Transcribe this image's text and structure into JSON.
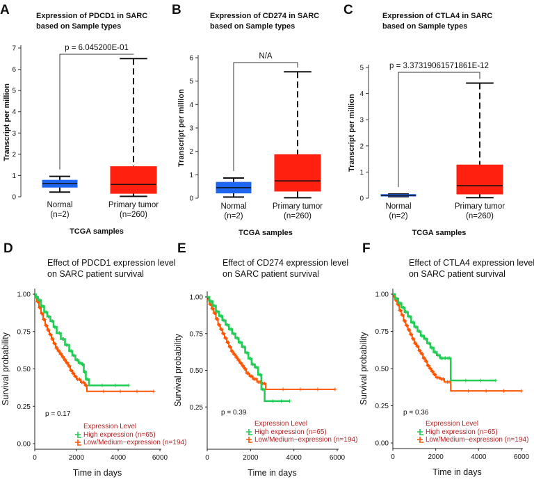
{
  "chart_data": [
    {
      "type": "box",
      "panel": "A",
      "title": "Expression of PDCD1 in SARC",
      "title2": "based on Sample types",
      "ylabel": "Transcript per million",
      "xlabel": "TCGA samples",
      "ylim": [
        0,
        7
      ],
      "yticks": [
        0,
        1,
        2,
        3,
        4,
        5,
        6,
        7
      ],
      "annotation": "p = 6.045200E-01",
      "groups": [
        {
          "name": "Normal",
          "n": "(n=2)",
          "color": "#1e66f0",
          "whisker_low": 0.22,
          "q1": 0.45,
          "median": 0.62,
          "q3": 0.78,
          "whisker_high": 0.96
        },
        {
          "name": "Primary tumor",
          "n": "(n=260)",
          "color": "#ff2010",
          "whisker_low": 0.02,
          "q1": 0.16,
          "median": 0.58,
          "q3": 1.42,
          "whisker_high": 6.5
        }
      ]
    },
    {
      "type": "box",
      "panel": "B",
      "title": "Expression of CD274 in SARC",
      "title2": "based on Sample types",
      "ylabel": "Transcript per million",
      "xlabel": "TCGA samples",
      "ylim": [
        0,
        6
      ],
      "yticks": [
        0,
        1,
        2,
        3,
        4,
        5,
        6
      ],
      "annotation": "N/A",
      "groups": [
        {
          "name": "Normal",
          "n": "(n=2)",
          "color": "#1e66f0",
          "whisker_low": 0.05,
          "q1": 0.22,
          "median": 0.45,
          "q3": 0.68,
          "whisker_high": 0.86
        },
        {
          "name": "Primary tumor",
          "n": "(n=260)",
          "color": "#ff2010",
          "whisker_low": 0.02,
          "q1": 0.3,
          "median": 0.74,
          "q3": 1.86,
          "whisker_high": 5.4
        }
      ]
    },
    {
      "type": "box",
      "panel": "C",
      "title": "Expression of CTLA4 in SARC",
      "title2": "based on Sample types",
      "ylabel": "Transcript per million",
      "xlabel": "TCGA samples",
      "ylim": [
        0,
        5
      ],
      "yticks": [
        0,
        1,
        2,
        3,
        4,
        5
      ],
      "annotation": "p = 3.37319061571861E-12",
      "groups": [
        {
          "name": "Normal",
          "n": "(n=2)",
          "color": "#1e66f0",
          "whisker_low": 0.06,
          "q1": 0.08,
          "median": 0.11,
          "q3": 0.14,
          "whisker_high": 0.16
        },
        {
          "name": "Primary tumor",
          "n": "(n=260)",
          "color": "#ff2010",
          "whisker_low": 0.02,
          "q1": 0.16,
          "median": 0.48,
          "q3": 1.27,
          "whisker_high": 4.4
        }
      ]
    },
    {
      "type": "line",
      "subtype": "kaplan-meier",
      "panel": "D",
      "title": "Effect of PDCD1 expression level",
      "title2": "on SARC patient survival",
      "ylabel": "Survival probability",
      "xlabel": "Time in days",
      "xlim": [
        0,
        6000
      ],
      "xticks": [
        0,
        2000,
        4000,
        6000
      ],
      "ylim": [
        0,
        1
      ],
      "yticks": [
        "0.00",
        "0.25",
        "0.50",
        "0.75",
        "1.00"
      ],
      "pvalue": "p = 0.17",
      "legend_title": "Expression Level",
      "series": [
        {
          "name": "High expression (n=65)",
          "color": "#22cc55",
          "x": [
            0,
            50,
            150,
            300,
            450,
            600,
            750,
            900,
            1050,
            1250,
            1450,
            1650,
            1800,
            1950,
            2100,
            2250,
            2350,
            2450,
            2600,
            4500
          ],
          "y": [
            1.0,
            0.98,
            0.96,
            0.92,
            0.88,
            0.85,
            0.82,
            0.78,
            0.74,
            0.7,
            0.66,
            0.62,
            0.59,
            0.56,
            0.54,
            0.53,
            0.48,
            0.43,
            0.39,
            0.39
          ]
        },
        {
          "name": "Low/Medium−expression (n=194)",
          "color": "#ff5500",
          "x": [
            0,
            50,
            100,
            200,
            300,
            400,
            500,
            600,
            700,
            800,
            900,
            1000,
            1100,
            1200,
            1300,
            1400,
            1500,
            1600,
            1700,
            1800,
            1900,
            2000,
            2200,
            2400,
            2500,
            5700
          ],
          "y": [
            1.0,
            0.98,
            0.95,
            0.91,
            0.87,
            0.83,
            0.79,
            0.76,
            0.73,
            0.7,
            0.67,
            0.64,
            0.62,
            0.6,
            0.58,
            0.56,
            0.54,
            0.52,
            0.49,
            0.47,
            0.45,
            0.43,
            0.41,
            0.39,
            0.35,
            0.35
          ]
        }
      ]
    },
    {
      "type": "line",
      "subtype": "kaplan-meier",
      "panel": "E",
      "title": "Effect of CD274 expression level",
      "title2": "on SARC patient survival",
      "ylabel": "Survival probability",
      "xlabel": "Time in days",
      "xlim": [
        0,
        6000
      ],
      "xticks": [
        0,
        2000,
        4000,
        6000
      ],
      "ylim": [
        0,
        1
      ],
      "yticks": [
        "0.25",
        "0.50",
        "0.75",
        "1.00"
      ],
      "pvalue": "p = 0.39",
      "legend_title": "Expression Level",
      "series": [
        {
          "name": "High expression (n=65)",
          "color": "#22cc55",
          "x": [
            0,
            100,
            250,
            400,
            550,
            700,
            850,
            1000,
            1150,
            1300,
            1450,
            1600,
            1750,
            1900,
            2050,
            2200,
            2350,
            2500,
            2650,
            3800
          ],
          "y": [
            1.0,
            0.97,
            0.94,
            0.9,
            0.87,
            0.84,
            0.81,
            0.78,
            0.75,
            0.72,
            0.69,
            0.66,
            0.62,
            0.58,
            0.54,
            0.52,
            0.47,
            0.37,
            0.29,
            0.29
          ]
        },
        {
          "name": "Low/Medium−expression (n=194)",
          "color": "#ff5500",
          "x": [
            0,
            50,
            100,
            200,
            300,
            400,
            500,
            600,
            700,
            800,
            900,
            1000,
            1100,
            1200,
            1300,
            1400,
            1500,
            1600,
            1700,
            1800,
            1950,
            2100,
            2300,
            2500,
            2700,
            5900
          ],
          "y": [
            1.0,
            0.98,
            0.95,
            0.92,
            0.89,
            0.85,
            0.81,
            0.78,
            0.75,
            0.72,
            0.69,
            0.66,
            0.63,
            0.61,
            0.59,
            0.57,
            0.55,
            0.53,
            0.51,
            0.48,
            0.46,
            0.44,
            0.42,
            0.41,
            0.37,
            0.37
          ]
        }
      ]
    },
    {
      "type": "line",
      "subtype": "kaplan-meier",
      "panel": "F",
      "title": "Effect of CTLA4 expression level",
      "title2": "on SARC patient survival",
      "ylabel": "Survival probability",
      "xlabel": "Time in days",
      "xlim": [
        0,
        6000
      ],
      "xticks": [
        0,
        2000,
        4000,
        6000
      ],
      "ylim": [
        0,
        1
      ],
      "yticks": [
        "0.00",
        "0.25",
        "0.50",
        "0.75",
        "1.00"
      ],
      "pvalue": "p = 0.36",
      "legend_title": "Expression Level",
      "series": [
        {
          "name": "High expression (n=65)",
          "color": "#22cc55",
          "x": [
            0,
            100,
            250,
            400,
            550,
            700,
            850,
            1000,
            1150,
            1300,
            1450,
            1600,
            1750,
            1900,
            2050,
            2200,
            2350,
            2500,
            2700,
            4800
          ],
          "y": [
            1.0,
            0.97,
            0.94,
            0.91,
            0.88,
            0.85,
            0.81,
            0.78,
            0.75,
            0.72,
            0.7,
            0.67,
            0.64,
            0.61,
            0.59,
            0.57,
            0.57,
            0.57,
            0.42,
            0.42
          ]
        },
        {
          "name": "Low/Medium−expression (n=194)",
          "color": "#ff5500",
          "x": [
            0,
            50,
            100,
            200,
            300,
            400,
            500,
            600,
            700,
            800,
            900,
            1000,
            1100,
            1200,
            1300,
            1400,
            1500,
            1600,
            1700,
            1800,
            1900,
            2000,
            2200,
            2400,
            2700,
            6000
          ],
          "y": [
            1.0,
            0.98,
            0.96,
            0.93,
            0.89,
            0.86,
            0.82,
            0.79,
            0.76,
            0.73,
            0.7,
            0.67,
            0.65,
            0.62,
            0.6,
            0.57,
            0.55,
            0.52,
            0.5,
            0.48,
            0.46,
            0.44,
            0.43,
            0.41,
            0.35,
            0.35
          ]
        }
      ]
    }
  ]
}
